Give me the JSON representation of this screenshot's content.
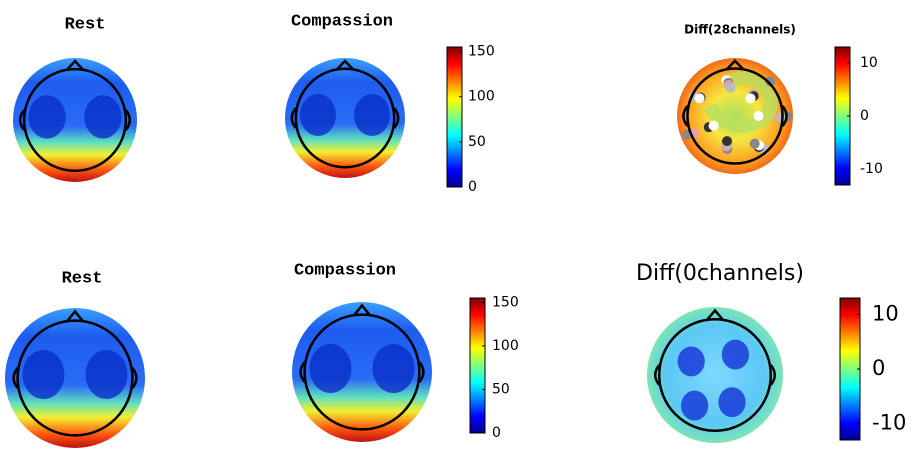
{
  "chart_data": [
    {
      "type": "topomap",
      "title": "Rest"
    },
    {
      "type": "topomap",
      "title": "Compassion",
      "colorbar": {
        "clim": [
          0,
          155
        ],
        "ticks": [
          0,
          50,
          100,
          150
        ]
      }
    },
    {
      "type": "topomap",
      "title": "Diff(28channels)",
      "colorbar": {
        "clim": [
          -13,
          13
        ],
        "ticks": [
          -10,
          0,
          10
        ]
      }
    },
    {
      "type": "topomap",
      "title": "Rest"
    },
    {
      "type": "topomap",
      "title": "Compassion",
      "colorbar": {
        "clim": [
          0,
          155
        ],
        "ticks": [
          0,
          50,
          100,
          150
        ]
      }
    },
    {
      "type": "topomap",
      "title": "Diff(0channels)",
      "colorbar": {
        "clim": [
          -13,
          13
        ],
        "ticks": [
          -10,
          0,
          10
        ]
      }
    }
  ]
}
